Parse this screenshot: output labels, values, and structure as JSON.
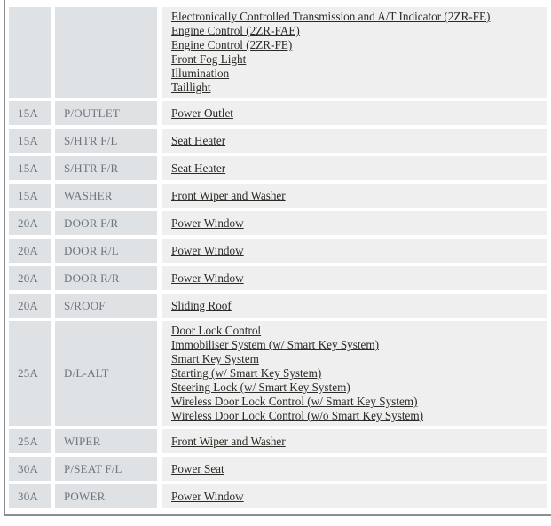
{
  "colors": {
    "cell-bg": "#dfe2e5",
    "desc-bg": "#efefef",
    "label-color": "#6f747b",
    "link-color": "#2b2a26",
    "border-color": "#8c8e90",
    "page-bg": "#ffffff"
  },
  "table": {
    "rows": [
      {
        "amp": "",
        "name": "",
        "links": [
          "Electronically Controlled Transmission and A/T Indicator (2ZR-FE)",
          "Engine Control (2ZR-FAE)",
          "Engine Control (2ZR-FE)",
          "Front Fog Light",
          "Illumination",
          "Taillight"
        ]
      },
      {
        "amp": "15A",
        "name": "P/OUTLET",
        "links": [
          "Power Outlet"
        ]
      },
      {
        "amp": "15A",
        "name": "S/HTR F/L",
        "links": [
          "Seat Heater"
        ]
      },
      {
        "amp": "15A",
        "name": "S/HTR F/R",
        "links": [
          "Seat Heater"
        ]
      },
      {
        "amp": "15A",
        "name": "WASHER",
        "links": [
          "Front Wiper and Washer"
        ]
      },
      {
        "amp": "20A",
        "name": "DOOR F/R",
        "links": [
          "Power Window"
        ]
      },
      {
        "amp": "20A",
        "name": "DOOR R/L",
        "links": [
          "Power Window"
        ]
      },
      {
        "amp": "20A",
        "name": "DOOR R/R",
        "links": [
          "Power Window"
        ]
      },
      {
        "amp": "20A",
        "name": "S/ROOF",
        "links": [
          "Sliding Roof"
        ]
      },
      {
        "amp": "25A",
        "name": "D/L-ALT",
        "links": [
          "Door Lock Control",
          "Immobiliser System (w/ Smart Key System)",
          "Smart Key System",
          "Starting (w/ Smart Key System)",
          "Steering Lock (w/ Smart Key System)",
          "Wireless Door Lock Control (w/ Smart Key System)",
          "Wireless Door Lock Control (w/o Smart Key System)"
        ]
      },
      {
        "amp": "25A",
        "name": "WIPER",
        "links": [
          "Front Wiper and Washer"
        ]
      },
      {
        "amp": "30A",
        "name": "P/SEAT F/L",
        "links": [
          "Power Seat"
        ]
      },
      {
        "amp": "30A",
        "name": "POWER",
        "links": [
          "Power Window"
        ]
      }
    ]
  }
}
